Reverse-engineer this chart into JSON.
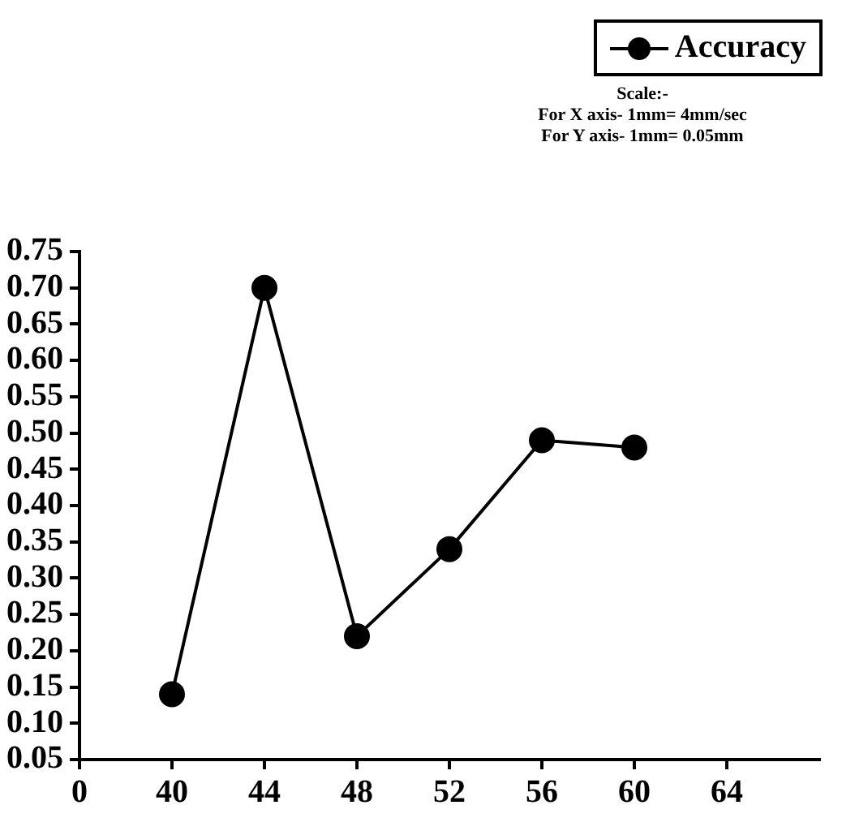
{
  "chart_data": {
    "type": "line",
    "categories": [
      "0",
      "40",
      "44",
      "48",
      "52",
      "56",
      "60",
      "64"
    ],
    "series": [
      {
        "name": "Accuracy",
        "color": "#000000",
        "values": [
          null,
          0.14,
          0.7,
          0.22,
          0.34,
          0.49,
          0.48,
          null
        ]
      }
    ],
    "ylim": [
      0.05,
      0.75
    ],
    "yticks": [
      0.05,
      {
        "value": 0.1,
        "label": "0.10"
      },
      0.15,
      {
        "value": 0.2,
        "label": "0.20"
      },
      0.25,
      {
        "value": 0.3,
        "label": "0.30"
      },
      0.35,
      {
        "value": 0.4,
        "label": "0.40"
      },
      0.45,
      {
        "value": 0.5,
        "label": "0.50"
      },
      0.55,
      {
        "value": 0.6,
        "label": "0.60"
      },
      0.65,
      {
        "value": 0.7,
        "label": "0.70"
      },
      0.75
    ],
    "legend": "top right",
    "marker": "circle",
    "line_style": "solid",
    "annotations": [
      "Scale:-",
      "For X axis- 1mm= 4mm/sec",
      "For Y axis- 1mm= 0.05mm"
    ]
  }
}
